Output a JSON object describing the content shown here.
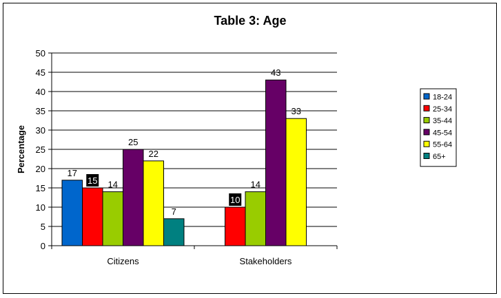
{
  "chart_data": {
    "type": "bar",
    "title": "Table 3: Age",
    "xlabel": "",
    "ylabel": "Percentage",
    "ylim": [
      0,
      50
    ],
    "yticks": [
      0,
      5,
      10,
      15,
      20,
      25,
      30,
      35,
      40,
      45,
      50
    ],
    "grid": true,
    "legend_position": "right",
    "categories": [
      "Citizens",
      "Stakeholders"
    ],
    "series": [
      {
        "name": "18-24",
        "color": "#0066CC",
        "values": [
          17,
          null
        ]
      },
      {
        "name": "25-34",
        "color": "#FF0000",
        "values": [
          15,
          10
        ]
      },
      {
        "name": "35-44",
        "color": "#99CC00",
        "values": [
          14,
          14
        ]
      },
      {
        "name": "45-54",
        "color": "#660066",
        "values": [
          25,
          43
        ]
      },
      {
        "name": "55-64",
        "color": "#FFFF00",
        "values": [
          22,
          33
        ]
      },
      {
        "name": "65+",
        "color": "#008080",
        "values": [
          7,
          null
        ]
      }
    ],
    "highlighted_labels": [
      {
        "series": "25-34",
        "category": "Citizens"
      },
      {
        "series": "25-34",
        "category": "Stakeholders"
      }
    ]
  }
}
